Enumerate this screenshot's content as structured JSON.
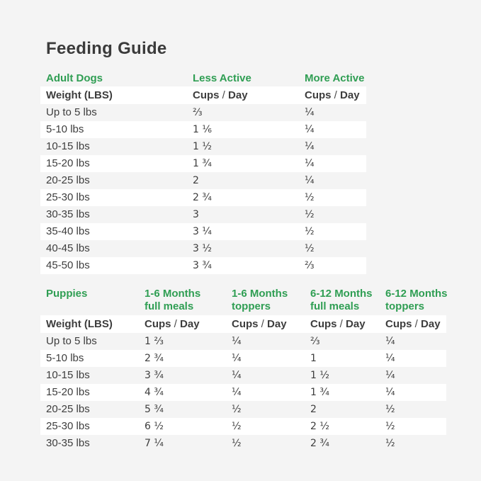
{
  "page": {
    "title": "Feeding Guide",
    "background_color": "#f4f4f4",
    "row_highlight_color": "#ffffff",
    "accent_green": "#2f9e53",
    "text_color": "#3d3d3d"
  },
  "adult_table": {
    "section_label": "Adult Dogs",
    "column_headers": [
      "Less Active",
      "More Active"
    ],
    "weight_header": "Weight (LBS)",
    "cups_label": "Cups / Day",
    "rows": [
      {
        "weight": "Up to 5 lbs",
        "values": [
          "⅔",
          "¼"
        ]
      },
      {
        "weight": "5-10 lbs",
        "values": [
          "1 ⅙",
          "¼"
        ]
      },
      {
        "weight": "10-15 lbs",
        "values": [
          "1 ½",
          "¼"
        ]
      },
      {
        "weight": "15-20 lbs",
        "values": [
          "1 ¾",
          "¼"
        ]
      },
      {
        "weight": "20-25 lbs",
        "values": [
          "2",
          "¼"
        ]
      },
      {
        "weight": "25-30 lbs",
        "values": [
          "2 ¾",
          "½"
        ]
      },
      {
        "weight": "30-35 lbs",
        "values": [
          "3",
          "½"
        ]
      },
      {
        "weight": "35-40 lbs",
        "values": [
          "3 ¼",
          "½"
        ]
      },
      {
        "weight": "40-45 lbs",
        "values": [
          "3 ½",
          "½"
        ]
      },
      {
        "weight": "45-50 lbs",
        "values": [
          "3 ¾",
          "⅔"
        ]
      }
    ]
  },
  "puppies_table": {
    "section_label": "Puppies",
    "column_headers": [
      {
        "line1": "1-6 Months",
        "line2": "full meals"
      },
      {
        "line1": "1-6 Months",
        "line2": "toppers"
      },
      {
        "line1": "6-12 Months",
        "line2": "full meals"
      },
      {
        "line1": "6-12 Months",
        "line2": "toppers"
      }
    ],
    "weight_header": "Weight (LBS)",
    "cups_label": "Cups / Day",
    "rows": [
      {
        "weight": "Up to 5 lbs",
        "values": [
          "1 ⅔",
          "¼",
          "⅔",
          "¼"
        ]
      },
      {
        "weight": "5-10 lbs",
        "values": [
          "2 ¾",
          "¼",
          "1",
          "¼"
        ]
      },
      {
        "weight": "10-15 lbs",
        "values": [
          "3 ¾",
          "¼",
          "1 ½",
          "¼"
        ]
      },
      {
        "weight": "15-20 lbs",
        "values": [
          "4 ¾",
          "¼",
          "1 ¾",
          "¼"
        ]
      },
      {
        "weight": "20-25 lbs",
        "values": [
          "5 ¾",
          "½",
          "2",
          "½"
        ]
      },
      {
        "weight": "25-30 lbs",
        "values": [
          "6 ½",
          "½",
          "2 ½",
          "½"
        ]
      },
      {
        "weight": "30-35 lbs",
        "values": [
          "7 ¼",
          "½",
          "2 ¾",
          "½"
        ]
      }
    ]
  }
}
